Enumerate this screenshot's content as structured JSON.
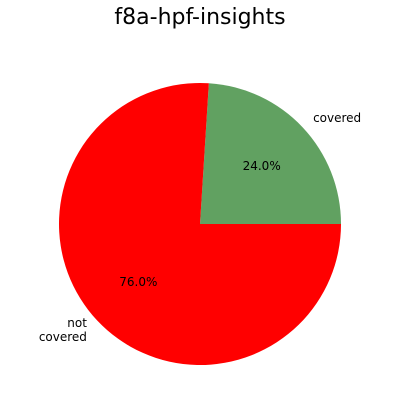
{
  "chart_data": {
    "type": "pie",
    "title": "f8a-hpf-insights",
    "slices": [
      {
        "label": "covered",
        "display_label": [
          "covered"
        ],
        "value": 24.0,
        "pct_label": "24.0%",
        "color": "#61a161"
      },
      {
        "label": "not covered",
        "display_label": [
          "not",
          "covered"
        ],
        "value": 76.0,
        "pct_label": "76.0%",
        "color": "#ff0000"
      }
    ],
    "start_angle": 0,
    "direction": "counterclockwise",
    "legend": "none"
  }
}
